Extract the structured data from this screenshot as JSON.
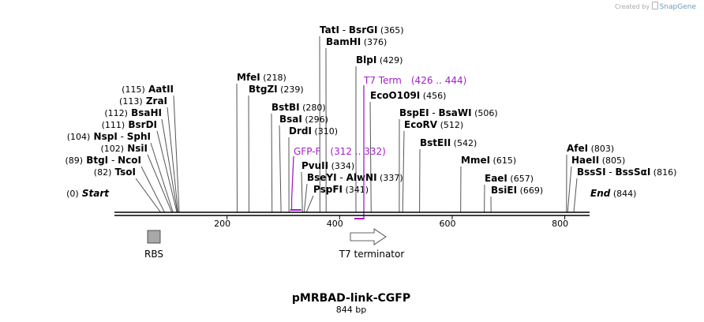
{
  "watermark": {
    "prefix": "Created by",
    "brand": "SnapGene"
  },
  "plasmid": {
    "name": "pMRBAD-link-CGFP",
    "length_label": "844 bp",
    "length": 844
  },
  "axis_ticks": [
    {
      "pos": 200,
      "label": "200"
    },
    {
      "pos": 400,
      "label": "400"
    },
    {
      "pos": 600,
      "label": "600"
    },
    {
      "pos": 800,
      "label": "800"
    }
  ],
  "sites": [
    {
      "pos": 365,
      "anchor": "start",
      "parts": [
        {
          "t": "TatI",
          "c": "enz"
        },
        {
          "t": "-",
          "c": "sep"
        },
        {
          "t": "BsrGI",
          "c": "enz"
        },
        {
          "t": "(365)",
          "c": "pos"
        }
      ]
    },
    {
      "pos": 376,
      "anchor": "start",
      "parts": [
        {
          "t": "BamHI",
          "c": "enz"
        },
        {
          "t": "(376)",
          "c": "pos"
        }
      ]
    },
    {
      "pos": 429,
      "anchor": "start",
      "parts": [
        {
          "t": "BlpI",
          "c": "enz"
        },
        {
          "t": "(429)",
          "c": "pos"
        }
      ]
    },
    {
      "pos": 456,
      "anchor": "start",
      "parts": [
        {
          "t": "EcoO109I",
          "c": "enz"
        },
        {
          "t": "(456)",
          "c": "pos"
        }
      ]
    },
    {
      "pos": 218,
      "anchor": "start",
      "parts": [
        {
          "t": "MfeI",
          "c": "enz"
        },
        {
          "t": "(218)",
          "c": "pos"
        }
      ]
    },
    {
      "pos": 239,
      "anchor": "start",
      "parts": [
        {
          "t": "BtgZI",
          "c": "enz"
        },
        {
          "t": "(239)",
          "c": "pos"
        }
      ]
    },
    {
      "pos": 280,
      "anchor": "start",
      "parts": [
        {
          "t": "BstBI",
          "c": "enz"
        },
        {
          "t": "(280)",
          "c": "pos"
        }
      ]
    },
    {
      "pos": 296,
      "anchor": "start",
      "parts": [
        {
          "t": "BsaI",
          "c": "enz"
        },
        {
          "t": "(296)",
          "c": "pos"
        }
      ]
    },
    {
      "pos": 310,
      "anchor": "start",
      "parts": [
        {
          "t": "DrdI",
          "c": "enz"
        },
        {
          "t": "(310)",
          "c": "pos"
        }
      ]
    },
    {
      "pos": 334,
      "anchor": "start",
      "parts": [
        {
          "t": "PvuII",
          "c": "enz"
        },
        {
          "t": "(334)",
          "c": "pos"
        }
      ]
    },
    {
      "pos": 337,
      "anchor": "start",
      "parts": [
        {
          "t": "BseYI",
          "c": "enz"
        },
        {
          "t": "-",
          "c": "sep"
        },
        {
          "t": "AlwNI",
          "c": "enz"
        },
        {
          "t": "(337)",
          "c": "pos"
        }
      ]
    },
    {
      "pos": 341,
      "anchor": "start",
      "parts": [
        {
          "t": "PspFI",
          "c": "enz"
        },
        {
          "t": "(341)",
          "c": "pos"
        }
      ]
    },
    {
      "pos": 506,
      "anchor": "start",
      "parts": [
        {
          "t": "BspEI",
          "c": "enz"
        },
        {
          "t": "-",
          "c": "sep"
        },
        {
          "t": "BsaWI",
          "c": "enz"
        },
        {
          "t": "(506)",
          "c": "pos"
        }
      ]
    },
    {
      "pos": 512,
      "anchor": "start",
      "parts": [
        {
          "t": "EcoRV",
          "c": "enz"
        },
        {
          "t": "(512)",
          "c": "pos"
        }
      ]
    },
    {
      "pos": 542,
      "anchor": "start",
      "parts": [
        {
          "t": "BstEII",
          "c": "enz"
        },
        {
          "t": "(542)",
          "c": "pos"
        }
      ]
    },
    {
      "pos": 615,
      "anchor": "start",
      "parts": [
        {
          "t": "MmeI",
          "c": "enz"
        },
        {
          "t": "(615)",
          "c": "pos"
        }
      ]
    },
    {
      "pos": 657,
      "anchor": "start",
      "parts": [
        {
          "t": "EaeI",
          "c": "enz"
        },
        {
          "t": "(657)",
          "c": "pos"
        }
      ]
    },
    {
      "pos": 669,
      "anchor": "start",
      "parts": [
        {
          "t": "BsiEI",
          "c": "enz"
        },
        {
          "t": "(669)",
          "c": "pos"
        }
      ]
    },
    {
      "pos": 803,
      "anchor": "start",
      "parts": [
        {
          "t": "AfeI",
          "c": "enz"
        },
        {
          "t": "(803)",
          "c": "pos"
        }
      ]
    },
    {
      "pos": 805,
      "anchor": "start",
      "parts": [
        {
          "t": "HaeII",
          "c": "enz"
        },
        {
          "t": "(805)",
          "c": "pos"
        }
      ]
    },
    {
      "pos": 816,
      "anchor": "start",
      "parts": [
        {
          "t": "BssSI",
          "c": "enz"
        },
        {
          "t": "-",
          "c": "sep"
        },
        {
          "t": "BssSαI",
          "c": "enz"
        },
        {
          "t": "(816)",
          "c": "pos"
        }
      ]
    },
    {
      "pos": 115,
      "anchor": "end",
      "parts": [
        {
          "t": "(115)",
          "c": "pos"
        },
        {
          "t": "AatII",
          "c": "enz"
        }
      ]
    },
    {
      "pos": 113,
      "anchor": "end",
      "parts": [
        {
          "t": "(113)",
          "c": "pos"
        },
        {
          "t": "ZraI",
          "c": "enz"
        }
      ]
    },
    {
      "pos": 112,
      "anchor": "end",
      "parts": [
        {
          "t": "(112)",
          "c": "pos"
        },
        {
          "t": "BsaHI",
          "c": "enz"
        }
      ]
    },
    {
      "pos": 111,
      "anchor": "end",
      "parts": [
        {
          "t": "(111)",
          "c": "pos"
        },
        {
          "t": "BsrDI",
          "c": "enz"
        }
      ]
    },
    {
      "pos": 104,
      "anchor": "end",
      "parts": [
        {
          "t": "(104)",
          "c": "pos"
        },
        {
          "t": "NspI",
          "c": "enz"
        },
        {
          "t": "-",
          "c": "sep"
        },
        {
          "t": "SphI",
          "c": "enz"
        }
      ]
    },
    {
      "pos": 102,
      "anchor": "end",
      "parts": [
        {
          "t": "(102)",
          "c": "pos"
        },
        {
          "t": "NsiI",
          "c": "enz"
        }
      ]
    },
    {
      "pos": 89,
      "anchor": "end",
      "parts": [
        {
          "t": "(89)",
          "c": "pos"
        },
        {
          "t": "BtgI",
          "c": "enz"
        },
        {
          "t": "-",
          "c": "sep"
        },
        {
          "t": "NcoI",
          "c": "enz"
        }
      ]
    },
    {
      "pos": 82,
      "anchor": "end",
      "parts": [
        {
          "t": "(82)",
          "c": "pos"
        },
        {
          "t": "TsoI",
          "c": "enz"
        }
      ]
    }
  ],
  "ends": [
    {
      "pos": 0,
      "anchor": "end",
      "parts": [
        {
          "t": "(0)",
          "c": "pos"
        },
        {
          "t": "Start",
          "c": "enz",
          "italic": true
        }
      ]
    },
    {
      "pos": 844,
      "anchor": "start",
      "parts": [
        {
          "t": "End",
          "c": "enz",
          "italic": true
        },
        {
          "t": "(844)",
          "c": "pos"
        }
      ]
    }
  ],
  "primers": [
    {
      "name": "GFP-F",
      "range_label": "(312 .. 332)",
      "start": 312,
      "end": 332,
      "color": "#a020c8"
    },
    {
      "name": "T7 Term",
      "range_label": "(426 .. 444)",
      "start": 426,
      "end": 444,
      "color": "#a020c8"
    }
  ],
  "features": [
    {
      "name": "RBS",
      "type": "RBS",
      "start": 60,
      "end": 82,
      "color": "#a8a8a8"
    },
    {
      "name": "T7 terminator",
      "type": "terminator",
      "start": 426,
      "end": 474,
      "color": "#ffffff"
    }
  ]
}
